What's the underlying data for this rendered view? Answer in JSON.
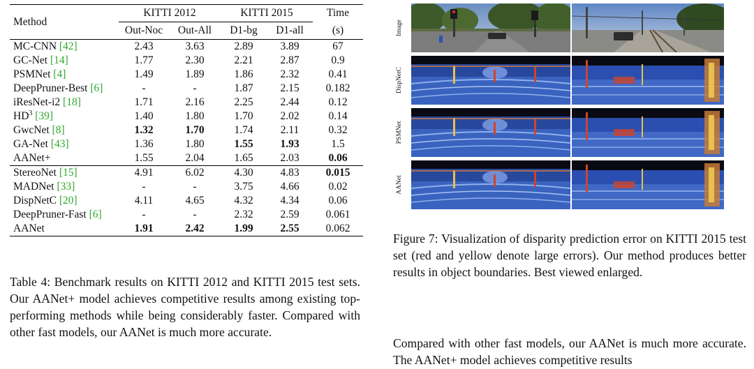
{
  "table": {
    "header": {
      "method": "Method",
      "kitti2012": "KITTI 2012",
      "kitti2015": "KITTI 2015",
      "time": "Time",
      "time_unit": "(s)",
      "sub": [
        "Out-Noc",
        "Out-All",
        "D1-bg",
        "D1-all"
      ]
    },
    "group1": [
      {
        "name": "MC-CNN ",
        "cite": "[42]",
        "v": [
          "2.43",
          "3.63",
          "2.89",
          "3.89",
          "67"
        ]
      },
      {
        "name": "GC-Net ",
        "cite": "[14]",
        "v": [
          "1.77",
          "2.30",
          "2.21",
          "2.87",
          "0.9"
        ]
      },
      {
        "name": "PSMNet ",
        "cite": "[4]",
        "v": [
          "1.49",
          "1.89",
          "1.86",
          "2.32",
          "0.41"
        ]
      },
      {
        "name": "DeepPruner-Best ",
        "cite": "[6]",
        "v": [
          "-",
          "-",
          "1.87",
          "2.15",
          "0.182"
        ]
      },
      {
        "name": "iResNet-i2 ",
        "cite": "[18]",
        "v": [
          "1.71",
          "2.16",
          "2.25",
          "2.44",
          "0.12"
        ]
      },
      {
        "name": "HD",
        "sup": "3",
        "cite": "[39]",
        "v": [
          "1.40",
          "1.80",
          "1.70",
          "2.02",
          "0.14"
        ]
      },
      {
        "name": "GwcNet ",
        "cite": "[8]",
        "v": [
          "1.32",
          "1.70",
          "1.74",
          "2.11",
          "0.32"
        ]
      },
      {
        "name": "GA-Net ",
        "cite": "[43]",
        "v": [
          "1.36",
          "1.80",
          "1.55",
          "1.93",
          "1.5"
        ]
      },
      {
        "name": "AANet+",
        "cite": "",
        "v": [
          "1.55",
          "2.04",
          "1.65",
          "2.03",
          "0.06"
        ]
      }
    ],
    "group2": [
      {
        "name": "StereoNet ",
        "cite": "[15]",
        "v": [
          "4.91",
          "6.02",
          "4.30",
          "4.83",
          "0.015"
        ]
      },
      {
        "name": "MADNet ",
        "cite": "[33]",
        "v": [
          "-",
          "-",
          "3.75",
          "4.66",
          "0.02"
        ]
      },
      {
        "name": "DispNetC ",
        "cite": "[20]",
        "v": [
          "4.11",
          "4.65",
          "4.32",
          "4.34",
          "0.06"
        ]
      },
      {
        "name": "DeepPruner-Fast ",
        "cite": "[6]",
        "v": [
          "-",
          "-",
          "2.32",
          "2.59",
          "0.061"
        ]
      },
      {
        "name": "AANet",
        "cite": "",
        "v": [
          "1.91",
          "2.42",
          "1.99",
          "2.55",
          "0.062"
        ]
      }
    ]
  },
  "table_caption": "Table 4: Benchmark results on KITTI 2012 and KITTI 2015 test sets. Our AANet+ model achieves competitive results among existing top-performing methods while being considerably faster. Compared with other fast models, our AANet is much more accurate.",
  "figure": {
    "row_labels": [
      "Image",
      "DispNetC",
      "PSMNet",
      "AANet"
    ],
    "caption": "Figure 7: Visualization of disparity prediction error on KITTI 2015 test set (red and yellow denote large errors). Our method produces better results in object boundaries. Best viewed enlarged."
  },
  "body_text": "Compared with other fast models, our AANet is much more accurate. The AANet+ model achieves competitive results",
  "colors": {
    "citation": "#2fa82f",
    "error_blue": "#2a4fb0",
    "error_red": "#d0442a",
    "error_yellow": "#e8c14a"
  }
}
